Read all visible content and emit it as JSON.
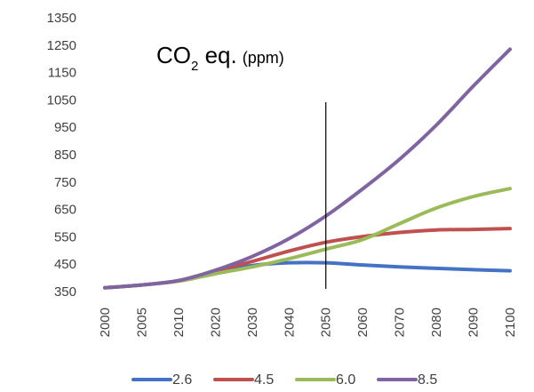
{
  "chart_data": {
    "type": "line",
    "title": {
      "main": "CO",
      "subscript": "2",
      "rest": " eq.",
      "unit": "(ppm)"
    },
    "xlabel": "",
    "ylabel": "",
    "x": [
      "2000",
      "2005",
      "2010",
      "2020",
      "2030",
      "2040",
      "2050",
      "2060",
      "2070",
      "2080",
      "2090",
      "2100"
    ],
    "ylim": [
      350,
      1350
    ],
    "yticks": [
      350,
      450,
      550,
      650,
      750,
      850,
      950,
      1050,
      1150,
      1250,
      1350
    ],
    "grid": false,
    "legend_position": "bottom",
    "vertical_marker": "2050",
    "series": [
      {
        "name": "2.6",
        "color": "#4472C4",
        "values": [
          364,
          374,
          390,
          420,
          445,
          455,
          455,
          447,
          440,
          435,
          430,
          426
        ]
      },
      {
        "name": "4.5",
        "color": "#C0504D",
        "values": [
          364,
          374,
          390,
          425,
          460,
          498,
          530,
          551,
          566,
          575,
          577,
          580
        ]
      },
      {
        "name": "6.0",
        "color": "#9BBB59",
        "values": [
          364,
          374,
          388,
          415,
          440,
          470,
          505,
          540,
          598,
          655,
          697,
          726
        ]
      },
      {
        "name": "8.5",
        "color": "#8064A2",
        "values": [
          364,
          374,
          390,
          428,
          478,
          543,
          626,
          725,
          833,
          958,
          1100,
          1235
        ]
      }
    ]
  }
}
